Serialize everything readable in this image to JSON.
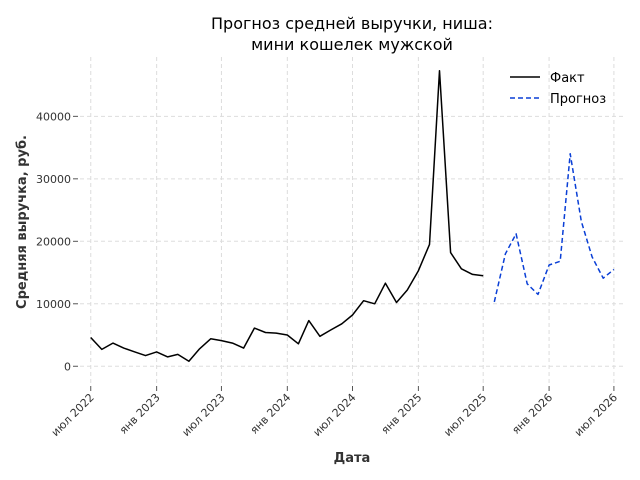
{
  "chart_data": {
    "type": "line",
    "title_lines": [
      "Прогноз средней выручки, ниша:",
      "мини кошелек мужской"
    ],
    "xlabel": "Дата",
    "ylabel": "Средняя выручка, руб.",
    "ylim": [
      -3000,
      49500
    ],
    "xlim": [
      "2022-06-01",
      "2026-08-01"
    ],
    "grid": true,
    "legend_position": "top-right",
    "y_ticks": [
      {
        "value": 0,
        "label": "0"
      },
      {
        "value": 10000,
        "label": "10000"
      },
      {
        "value": 20000,
        "label": "20000"
      },
      {
        "value": 30000,
        "label": "30000"
      },
      {
        "value": 40000,
        "label": "40000"
      }
    ],
    "x_ticks": [
      {
        "date": "2022-07-01",
        "label": "июл 2022"
      },
      {
        "date": "2023-01-01",
        "label": "янв 2023"
      },
      {
        "date": "2023-07-01",
        "label": "июл 2023"
      },
      {
        "date": "2024-01-01",
        "label": "янв 2024"
      },
      {
        "date": "2024-07-01",
        "label": "июл 2024"
      },
      {
        "date": "2025-01-01",
        "label": "янв 2025"
      },
      {
        "date": "2025-07-01",
        "label": "июл 2025"
      },
      {
        "date": "2026-01-01",
        "label": "янв 2026"
      },
      {
        "date": "2026-07-01",
        "label": "июл 2026"
      }
    ],
    "series": [
      {
        "name": "Факт",
        "color": "#000000",
        "dash": "solid",
        "points": [
          [
            "2022-07-01",
            4600
          ],
          [
            "2022-08-01",
            2700
          ],
          [
            "2022-09-01",
            3700
          ],
          [
            "2022-10-01",
            2900
          ],
          [
            "2022-11-01",
            2300
          ],
          [
            "2022-12-01",
            1700
          ],
          [
            "2023-01-01",
            2300
          ],
          [
            "2023-02-01",
            1500
          ],
          [
            "2023-03-01",
            1900
          ],
          [
            "2023-04-01",
            800
          ],
          [
            "2023-05-01",
            2800
          ],
          [
            "2023-06-01",
            4400
          ],
          [
            "2023-07-01",
            4100
          ],
          [
            "2023-08-01",
            3700
          ],
          [
            "2023-09-01",
            2900
          ],
          [
            "2023-10-01",
            6100
          ],
          [
            "2023-11-01",
            5400
          ],
          [
            "2023-12-01",
            5300
          ],
          [
            "2024-01-01",
            5000
          ],
          [
            "2024-02-01",
            3600
          ],
          [
            "2024-03-01",
            7300
          ],
          [
            "2024-04-01",
            4800
          ],
          [
            "2024-05-01",
            5800
          ],
          [
            "2024-06-01",
            6800
          ],
          [
            "2024-07-01",
            8200
          ],
          [
            "2024-08-01",
            10500
          ],
          [
            "2024-09-01",
            10000
          ],
          [
            "2024-10-01",
            13300
          ],
          [
            "2024-11-01",
            10200
          ],
          [
            "2024-12-01",
            12200
          ],
          [
            "2025-01-01",
            15300
          ],
          [
            "2025-02-01",
            19500
          ],
          [
            "2025-03-01",
            47300
          ],
          [
            "2025-04-01",
            18200
          ],
          [
            "2025-05-01",
            15600
          ],
          [
            "2025-06-01",
            14700
          ],
          [
            "2025-07-01",
            14500
          ]
        ]
      },
      {
        "name": "Прогноз",
        "color": "#0a3fd6",
        "dash": "dashed",
        "points": [
          [
            "2025-08-01",
            10300
          ],
          [
            "2025-09-01",
            18000
          ],
          [
            "2025-10-01",
            21200
          ],
          [
            "2025-11-01",
            13200
          ],
          [
            "2025-12-01",
            11500
          ],
          [
            "2026-01-01",
            16200
          ],
          [
            "2026-02-01",
            16800
          ],
          [
            "2026-03-01",
            34000
          ],
          [
            "2026-04-01",
            23200
          ],
          [
            "2026-05-01",
            17500
          ],
          [
            "2026-06-01",
            14100
          ],
          [
            "2026-07-01",
            15500
          ]
        ]
      }
    ]
  }
}
